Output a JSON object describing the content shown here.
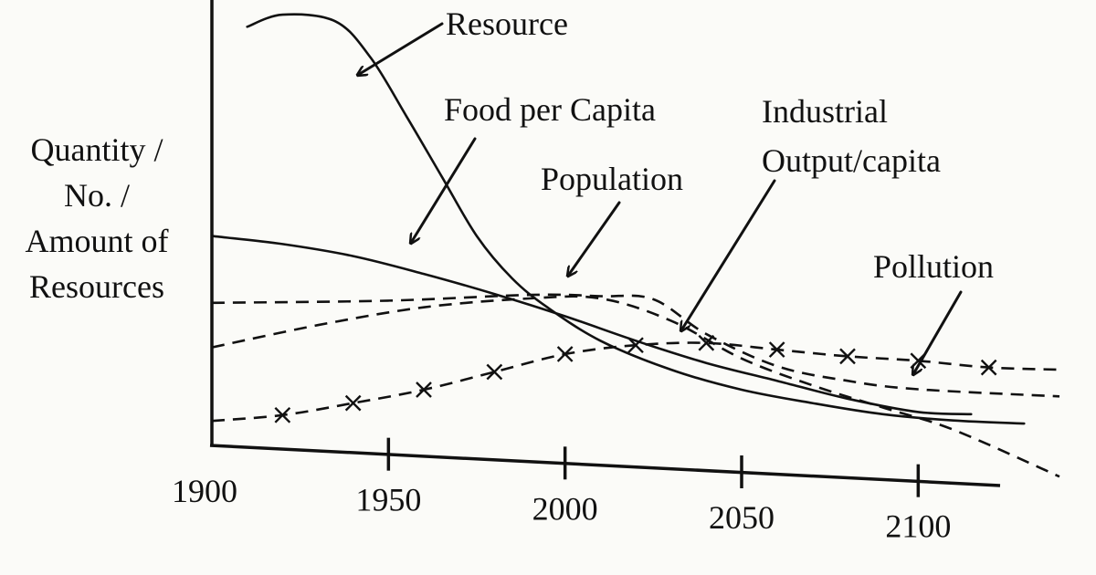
{
  "chart_data": {
    "type": "line",
    "ylabel_lines": [
      "Quantity /",
      "No. /",
      "Amount of",
      "Resources"
    ],
    "xlabel": "",
    "x_ticks": [
      "1900",
      "1950",
      "2000",
      "2050",
      "2100"
    ],
    "xlim": [
      1900,
      2140
    ],
    "ylim": [
      0,
      100
    ],
    "grid": false,
    "legend": "none",
    "series": [
      {
        "name": "Resource",
        "line_style": "solid",
        "x": [
          1910,
          1920,
          1935,
          1945,
          1955,
          1965,
          1975,
          1985,
          1995,
          2010,
          2030,
          2050,
          2070,
          2090,
          2110,
          2130
        ],
        "y": [
          94,
          96.7,
          95.2,
          87,
          74,
          60.5,
          47,
          37.5,
          31,
          23.5,
          17,
          12.5,
          9.5,
          7,
          5.6,
          4.9
        ]
      },
      {
        "name": "Food per Capita",
        "line_style": "solid",
        "x": [
          1900,
          1920,
          1940,
          1960,
          1980,
          2000,
          2020,
          2040,
          2060,
          2080,
          2100,
          2115
        ],
        "y": [
          47,
          45.2,
          42.5,
          38.5,
          34,
          29,
          23.5,
          18.5,
          14.5,
          10.5,
          7.5,
          7
        ]
      },
      {
        "name": "Population",
        "line_style": "dashed",
        "x": [
          1900,
          1950,
          1990,
          2010,
          2025,
          2040,
          2060,
          2080,
          2100,
          2140
        ],
        "y": [
          32,
          32.5,
          33.8,
          33.5,
          32.8,
          25,
          17.8,
          14.5,
          12.6,
          11
        ]
      },
      {
        "name": "Industrial Output/capita",
        "line_style": "dashed",
        "x": [
          1900,
          1930,
          1960,
          1990,
          2010,
          2030,
          2050,
          2070,
          2090,
          2110,
          2140
        ],
        "y": [
          22,
          27,
          31,
          33,
          33,
          28,
          19.5,
          13.5,
          8.5,
          3.5,
          -7
        ]
      },
      {
        "name": "Pollution",
        "line_style": "dashed-x-marker",
        "x": [
          1900,
          1920,
          1940,
          1960,
          1980,
          2000,
          2020,
          2040,
          2060,
          2080,
          2100,
          2120,
          2140
        ],
        "y": [
          5.5,
          6.8,
          9.5,
          12.5,
          16.5,
          20.5,
          22.5,
          23,
          21.5,
          20,
          19,
          17.5,
          17
        ]
      }
    ],
    "annotations": [
      {
        "text": "Resource",
        "points_to": "Resource"
      },
      {
        "text": "Food per Capita",
        "points_to": "Food per Capita"
      },
      {
        "text": "Population",
        "points_to": "Population"
      },
      {
        "text": [
          "Industrial",
          "Output/capita"
        ],
        "points_to": "Industrial Output/capita"
      },
      {
        "text": "Pollution",
        "points_to": "Pollution"
      }
    ]
  }
}
